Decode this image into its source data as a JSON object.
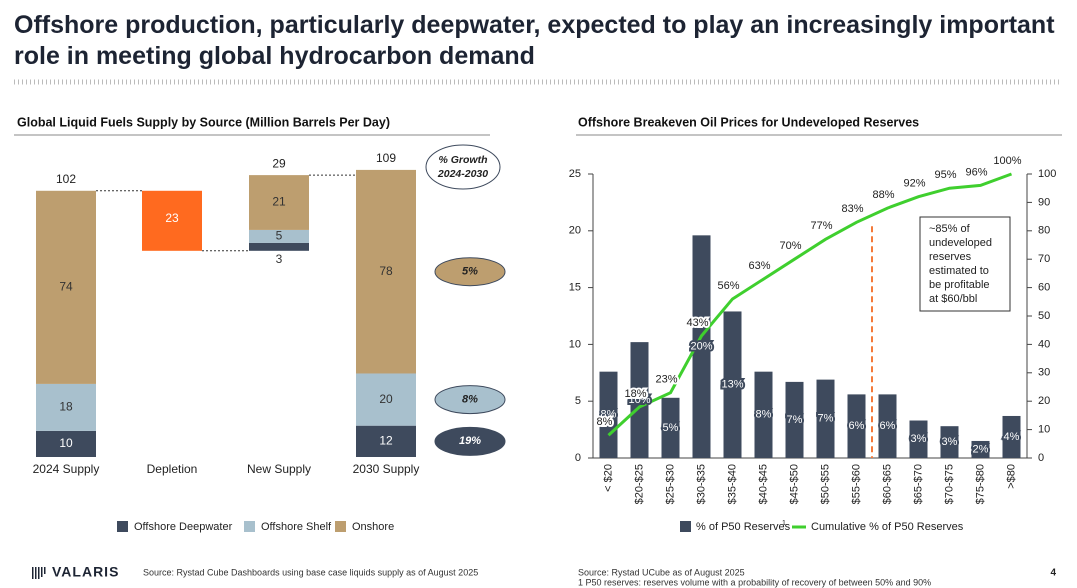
{
  "header": {
    "title_lines": [
      "Offshore production, particularly deepwater, expected to play an increasingly important",
      "role in meeting global hydrocarbon demand"
    ]
  },
  "chart_data": [
    {
      "type": "waterfall",
      "title": "Global Liquid Fuels Supply by Source (Million Barrels Per Day)",
      "categories": [
        "2024 Supply",
        "Depletion",
        "New Supply",
        "2030 Supply"
      ],
      "series": [
        {
          "name": "Offshore Deepwater",
          "color": "#3e4a5d",
          "values": [
            10,
            null,
            3,
            12
          ],
          "growth": 19,
          "growth_label": "19%"
        },
        {
          "name": "Offshore Shelf",
          "color": "#a8c0cd",
          "values": [
            18,
            null,
            5,
            20
          ],
          "growth": 8,
          "growth_label": "8%"
        },
        {
          "name": "Onshore",
          "color": "#bd9e6f",
          "values": [
            74,
            null,
            21,
            78
          ],
          "growth": 5,
          "growth_label": "5%"
        }
      ],
      "decrease_values": [
        null,
        23,
        null,
        null
      ],
      "decrease_color": "#ff6a1f",
      "totals": [
        102,
        null,
        29,
        109
      ],
      "growth_header": [
        "% Growth",
        "2024-2030"
      ]
    },
    {
      "type": "combo",
      "title": "Offshore Breakeven Oil Prices for Undeveloped Reserves",
      "categories": [
        "< $20",
        "$20-$25",
        "$25-$30",
        "$30-$35",
        "$35-$40",
        "$40-$45",
        "$45-$50",
        "$50-$55",
        "$55-$60",
        "$60-$65",
        "$65-$70",
        "$70-$75",
        "$75-$80",
        ">$80"
      ],
      "series": [
        {
          "name": "% of P50 Reserves",
          "legend_note": "1",
          "type": "bar",
          "color": "#3e4a5d",
          "values": [
            7.6,
            10.2,
            5.3,
            19.6,
            12.9,
            7.6,
            6.7,
            6.9,
            5.6,
            5.6,
            3.3,
            2.8,
            1.5,
            3.7
          ],
          "value_labels": [
            "8%",
            "10%",
            "5%",
            "20%",
            "13%",
            "8%",
            "7%",
            "7%",
            "6%",
            "6%",
            "3%",
            "3%",
            "2%",
            "4%"
          ]
        },
        {
          "name": "Cumulative % of P50 Reserves",
          "type": "line",
          "axis": "y2",
          "color": "#3fcf2e",
          "values": [
            8,
            18,
            23,
            43,
            56,
            63,
            70,
            77,
            83,
            88,
            92,
            95,
            96,
            100
          ],
          "value_labels": [
            "8%",
            "18%",
            "23%",
            "43%",
            "56%",
            "63%",
            "70%",
            "77%",
            "83%",
            "88%",
            "92%",
            "95%",
            "96%",
            "100%"
          ]
        }
      ],
      "ylim": [
        0,
        25
      ],
      "yticks": [
        0,
        5,
        10,
        15,
        20,
        25
      ],
      "y2lim": [
        0,
        100
      ],
      "y2ticks": [
        0,
        10,
        20,
        30,
        40,
        50,
        60,
        70,
        80,
        90,
        100
      ],
      "threshold_color": "#f47a3a",
      "annotation_lines": [
        "~85% of",
        "undeveloped",
        "reserves",
        "estimated to",
        "be profitable",
        "at $60/bbl"
      ]
    }
  ],
  "footer": {
    "logo": "VALARIS",
    "source_left": "Source: Rystad Cube Dashboards using base case liquids supply as of August 2025",
    "source_right": "Source: Rystad UCube as of August 2025",
    "footnote": "1 P50 reserves: reserves volume with a probability of recovery of between 50% and 90%",
    "page": "4"
  }
}
